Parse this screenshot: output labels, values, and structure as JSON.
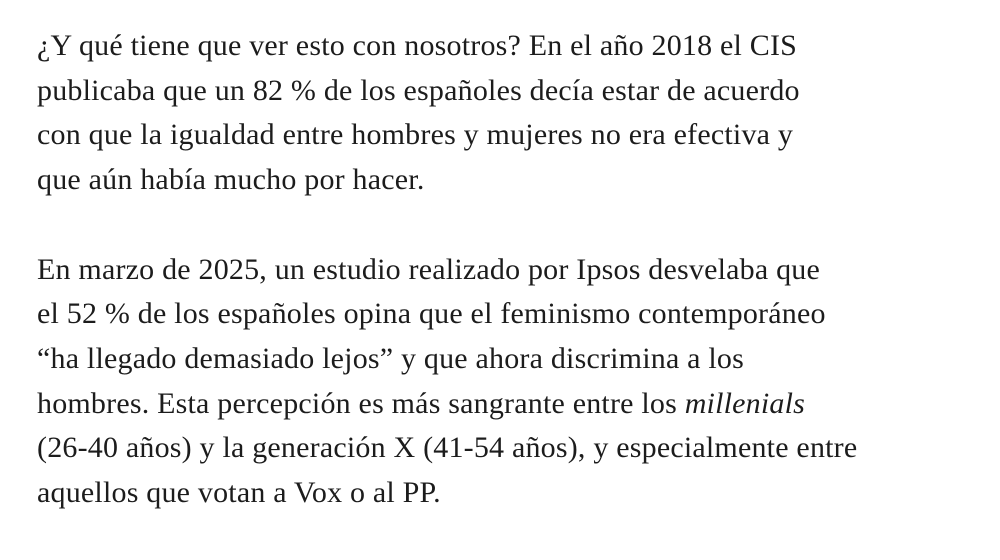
{
  "paragraphs": [
    {
      "lines": [
        [
          "¿Y qué tiene que ver esto con nosotros? En el año 2018 el CIS"
        ],
        [
          "publicaba que un 82 % de los españoles decía estar de acuerdo"
        ],
        [
          "con que la igualdad entre hombres y mujeres no era efectiva y"
        ],
        [
          "que aún había mucho por hacer."
        ]
      ]
    },
    {
      "lines": [
        [
          "En marzo de 2025, un estudio realizado por Ipsos desvelaba que"
        ],
        [
          "el 52 % de los españoles opina que el feminismo contemporáneo"
        ],
        [
          "“ha llegado demasiado lejos” y que ahora discrimina a los"
        ],
        [
          "hombres. Esta percepción es más sangrante entre los ",
          "millenials"
        ],
        [
          "(26-40 años) y la generación X (41-54 años), y especialmente entre"
        ],
        [
          "aquellos que votan a Vox o al PP."
        ]
      ]
    }
  ]
}
